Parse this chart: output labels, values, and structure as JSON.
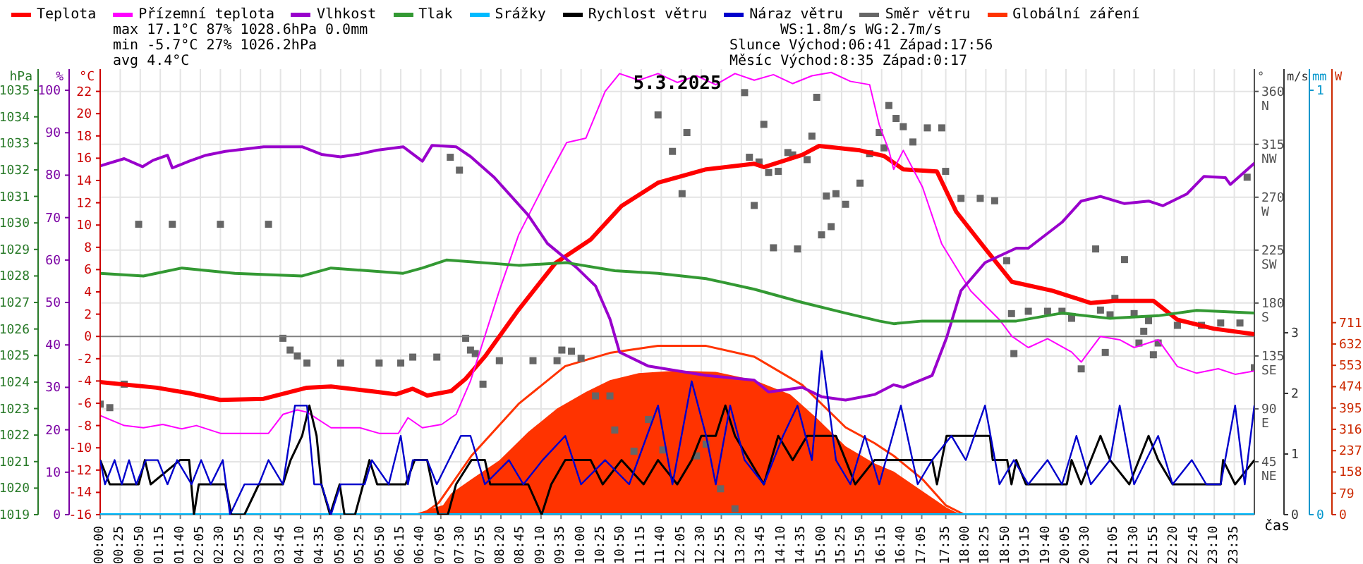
{
  "chart_data": [
    {
      "type": "line",
      "title": "5.3.2025",
      "ylabel": "°C",
      "y2label": "%",
      "y3label": "hPa",
      "annotations": [
        "max 17.1°C 87% 1028.6hPa 0.0mm",
        "min -5.7°C 27% 1026.2hPa",
        "avg 4.4°C",
        "WS:1.8m/s WG:2.7m/s",
        "Slunce Východ:06:41 Západ:17:56",
        "Měsíc Východ:8:35 Západ:0:17"
      ],
      "xlim": [
        0,
        24
      ],
      "tick_labels": "y",
      "ylim": [
        -16,
        24
      ],
      "yticks": [
        -16,
        -14,
        -12,
        -10,
        -8,
        -6,
        -4,
        -2,
        0,
        2,
        4,
        6,
        8,
        10,
        12,
        14,
        16,
        18,
        20,
        22
      ],
      "y2lim": [
        0,
        105
      ],
      "y2ticks": [
        0,
        10,
        20,
        30,
        40,
        50,
        60,
        70,
        80,
        90,
        100
      ],
      "y3lim": [
        1019,
        1035.8
      ],
      "y3ticks": [
        1019,
        1020,
        1021,
        1022,
        1023,
        1024,
        1025,
        1026,
        1027,
        1028,
        1029,
        1030,
        1031,
        1032,
        1033,
        1034,
        1035
      ],
      "legend": "top",
      "ref_lines": [
        {
          "axis": "y",
          "value": 0,
          "color": "#808080"
        }
      ],
      "series": [
        {
          "name": "Teplota",
          "color": "#ff0000",
          "x": [
            0,
            1.17,
            1.85,
            2.5,
            3.4,
            4.3,
            4.8,
            5.8,
            6.15,
            6.5,
            6.8,
            7.3,
            7.6,
            8.0,
            8.7,
            9.47,
            10.2,
            10.84,
            11.6,
            12.6,
            13.6,
            13.8,
            14.6,
            14.95,
            15.8,
            16.3,
            16.7,
            17.4,
            17.8,
            18.4,
            18.96,
            19.8,
            20.6,
            21.1,
            21.9,
            22.4,
            23.15,
            24
          ],
          "values": [
            -4.1,
            -4.6,
            -5.1,
            -5.7,
            -5.6,
            -4.6,
            -4.5,
            -5.0,
            -5.2,
            -4.7,
            -5.3,
            -4.9,
            -3.8,
            -1.8,
            2.4,
            6.6,
            8.7,
            11.7,
            13.8,
            15.0,
            15.5,
            15.2,
            16.3,
            17.1,
            16.7,
            16.2,
            15.0,
            14.8,
            11.2,
            7.9,
            4.9,
            4.1,
            3.0,
            3.2,
            3.2,
            1.5,
            0.7,
            0.2
          ]
        },
        {
          "name": "Přízemní teplota",
          "color": "#ff00ff",
          "x": [
            0,
            0.5,
            0.9,
            1.3,
            1.7,
            2.0,
            2.5,
            3.0,
            3.5,
            3.8,
            4.1,
            4.3,
            4.8,
            5.4,
            5.8,
            6.2,
            6.4,
            6.7,
            7.1,
            7.4,
            7.7,
            8.3,
            8.7,
            9.3,
            9.7,
            10.1,
            10.5,
            10.8,
            11.2,
            11.6,
            12.0,
            12.4,
            12.8,
            13.2,
            13.6,
            14.0,
            14.4,
            14.8,
            15.2,
            15.6,
            16.0,
            16.2,
            16.4,
            16.5,
            16.7,
            17.1,
            17.5,
            18.1,
            18.7,
            18.96,
            19.3,
            19.7,
            20.2,
            20.4,
            20.8,
            21.2,
            21.5,
            22.0,
            22.4,
            22.8,
            23.25,
            23.6,
            24
          ],
          "values": [
            -7.1,
            -8.0,
            -8.2,
            -7.9,
            -8.3,
            -8.0,
            -8.7,
            -8.7,
            -8.7,
            -7.0,
            -6.6,
            -6.8,
            -8.2,
            -8.2,
            -8.7,
            -8.7,
            -7.3,
            -8.2,
            -7.9,
            -7.0,
            -4.0,
            4.1,
            9.1,
            14.2,
            17.4,
            17.8,
            22.0,
            23.6,
            23.0,
            23.6,
            22.8,
            23.4,
            22.6,
            23.6,
            23.0,
            23.5,
            22.7,
            23.4,
            23.7,
            22.9,
            22.6,
            19.0,
            16.7,
            15.0,
            16.7,
            13.4,
            8.3,
            4.1,
            1.5,
            0.0,
            -1.0,
            -0.2,
            -1.4,
            -2.3,
            0.0,
            -0.3,
            -1.0,
            -0.3,
            -2.7,
            -3.3,
            -2.9,
            -3.4,
            -3.1
          ]
        },
        {
          "name": "Vlhkost",
          "color": "#9900cc",
          "axis": "y2",
          "x": [
            0,
            0.5,
            0.88,
            1.1,
            1.4,
            1.5,
            1.85,
            2.2,
            2.6,
            3.4,
            4.2,
            4.6,
            5.0,
            5.4,
            5.76,
            6.3,
            6.7,
            6.9,
            7.4,
            7.7,
            8.2,
            8.9,
            9.3,
            9.9,
            10.3,
            10.6,
            10.8,
            11.4,
            12.0,
            12.6,
            13.6,
            13.9,
            14.6,
            15.0,
            15.5,
            16.1,
            16.5,
            16.7,
            17.3,
            17.6,
            17.9,
            18.4,
            19.05,
            19.3,
            20.0,
            20.4,
            20.8,
            21.3,
            21.8,
            22.1,
            22.6,
            22.95,
            23.4,
            23.5,
            24
          ],
          "values": [
            82.2,
            83.9,
            82.0,
            83.5,
            84.7,
            81.7,
            83.3,
            84.7,
            85.6,
            86.7,
            86.7,
            84.9,
            84.3,
            85.0,
            85.9,
            86.7,
            83.3,
            87.0,
            86.7,
            84.4,
            79.4,
            70.6,
            63.9,
            58.3,
            53.9,
            46.1,
            38.3,
            35.0,
            33.9,
            32.8,
            31.7,
            28.9,
            30.0,
            27.8,
            27.0,
            28.3,
            30.6,
            30.0,
            32.8,
            41.7,
            52.8,
            59.4,
            62.8,
            62.8,
            68.9,
            73.9,
            75.0,
            73.3,
            73.9,
            72.8,
            75.6,
            79.7,
            79.4,
            77.8,
            82.8
          ]
        },
        {
          "name": "Tlak",
          "color": "#339933",
          "axis": "y3",
          "x": [
            0,
            0.9,
            1.7,
            2.8,
            4.2,
            4.8,
            6.3,
            6.7,
            7.2,
            8.7,
            9.7,
            10.7,
            11.6,
            12.6,
            13.6,
            14.6,
            15.5,
            16.2,
            16.5,
            17.1,
            18.1,
            19.05,
            20.0,
            21.0,
            22.0,
            22.8,
            24
          ],
          "values": [
            1028.1,
            1028.0,
            1028.3,
            1028.1,
            1028.0,
            1028.3,
            1028.1,
            1028.3,
            1028.6,
            1028.4,
            1028.5,
            1028.2,
            1028.1,
            1027.9,
            1027.5,
            1027.0,
            1026.6,
            1026.3,
            1026.2,
            1026.3,
            1026.3,
            1026.3,
            1026.6,
            1026.4,
            1026.5,
            1026.7,
            1026.6
          ]
        }
      ]
    },
    {
      "type": "line",
      "ylabel": "m/s",
      "y2label": "mm",
      "xlim": [
        0,
        24
      ],
      "tick_labels": "y",
      "ylim": [
        0,
        7.35
      ],
      "yticks": [
        0,
        1,
        2,
        3
      ],
      "y2lim": [
        0,
        1.05
      ],
      "y2ticks": [
        0,
        1
      ],
      "legend": "top",
      "series": [
        {
          "name": "Srážky",
          "color": "#00bbff",
          "axis": "y2",
          "x": [
            0,
            24
          ],
          "values": [
            0,
            0
          ]
        },
        {
          "name": "Rychlost větru",
          "color": "#000000",
          "x": [
            0,
            0.2,
            0.8,
            0.93,
            1.05,
            1.66,
            1.85,
            1.95,
            2.05,
            2.6,
            2.73,
            3.0,
            3.3,
            3.8,
            3.96,
            4.2,
            4.35,
            4.5,
            4.6,
            4.78,
            4.98,
            5.08,
            5.3,
            5.47,
            5.6,
            5.76,
            6.35,
            6.54,
            6.8,
            7.03,
            7.23,
            7.4,
            7.72,
            8.0,
            8.11,
            8.9,
            9.18,
            9.38,
            9.67,
            10.2,
            10.45,
            10.84,
            11.3,
            11.6,
            12.0,
            12.3,
            12.5,
            12.8,
            13.0,
            13.2,
            13.5,
            13.8,
            14.1,
            14.4,
            14.7,
            15.3,
            15.5,
            15.7,
            16.1,
            16.7,
            17.3,
            17.4,
            17.6,
            18.5,
            18.56,
            18.86,
            18.95,
            19.05,
            19.25,
            20.1,
            20.2,
            20.4,
            20.8,
            21.0,
            21.4,
            21.8,
            22.0,
            22.3,
            23.3,
            23.35,
            23.6,
            24
          ],
          "values": [
            0.9,
            0.5,
            0.5,
            0.9,
            0.5,
            0.9,
            0.9,
            0,
            0.5,
            0.5,
            0,
            0,
            0.5,
            0.5,
            0.9,
            1.3,
            1.8,
            1.3,
            0.5,
            0,
            0.5,
            0,
            0,
            0.5,
            0.9,
            0.5,
            0.5,
            0.9,
            0.9,
            0,
            0,
            0.5,
            0.9,
            0.9,
            0.5,
            0.5,
            0,
            0.5,
            0.9,
            0.9,
            0.5,
            0.9,
            0.5,
            0.9,
            0.5,
            0.9,
            1.3,
            1.3,
            1.8,
            1.3,
            0.9,
            0.5,
            1.3,
            0.9,
            1.3,
            1.3,
            0.9,
            0.5,
            0.9,
            0.9,
            0.9,
            0.5,
            1.3,
            1.3,
            0.9,
            0.9,
            0.5,
            0.9,
            0.5,
            0.5,
            0.9,
            0.5,
            1.3,
            0.9,
            0.5,
            1.3,
            0.9,
            0.5,
            0.5,
            0.9,
            0.5,
            0.9
          ]
        },
        {
          "name": "Náraz větru",
          "color": "#0000cc",
          "x": [
            0,
            0.1,
            0.3,
            0.45,
            0.6,
            0.75,
            0.95,
            1.2,
            1.4,
            1.6,
            1.9,
            2.1,
            2.3,
            2.55,
            2.7,
            3.0,
            3.3,
            3.5,
            3.8,
            4.05,
            4.3,
            4.45,
            4.6,
            4.8,
            5.0,
            5.5,
            5.65,
            6.0,
            6.25,
            6.4,
            6.5,
            6.8,
            7.0,
            7.5,
            7.7,
            8.0,
            8.5,
            8.8,
            9.2,
            9.67,
            10.0,
            10.5,
            11.0,
            11.6,
            11.9,
            12.3,
            12.6,
            12.8,
            13.1,
            13.4,
            13.8,
            14.2,
            14.5,
            14.8,
            15.0,
            15.3,
            15.6,
            15.9,
            16.2,
            16.65,
            17.0,
            17.3,
            17.7,
            18.0,
            18.4,
            18.7,
            19.0,
            19.3,
            19.7,
            20.0,
            20.3,
            20.6,
            21.0,
            21.2,
            21.5,
            22.0,
            22.3,
            22.7,
            23.0,
            23.3,
            23.6,
            23.8,
            24
          ],
          "values": [
            0.9,
            0.5,
            0.9,
            0.5,
            0.9,
            0.5,
            0.9,
            0.9,
            0.5,
            0.9,
            0.5,
            0.9,
            0.5,
            0.9,
            0,
            0.5,
            0.5,
            0.9,
            0.5,
            1.8,
            1.8,
            0.5,
            0.5,
            0,
            0.5,
            0.5,
            0.9,
            0.5,
            1.3,
            0.5,
            0.9,
            0.9,
            0.5,
            1.3,
            1.3,
            0.5,
            0.9,
            0.5,
            0.9,
            1.3,
            0.5,
            0.9,
            0.5,
            1.8,
            0.5,
            2.2,
            1.3,
            0.5,
            1.8,
            0.9,
            0.5,
            1.3,
            1.8,
            0.9,
            2.7,
            0.9,
            0.5,
            1.3,
            0.5,
            1.8,
            0.5,
            0.9,
            1.3,
            0.9,
            1.8,
            0.5,
            0.9,
            0.5,
            0.9,
            0.5,
            1.3,
            0.5,
            0.9,
            1.8,
            0.5,
            1.3,
            0.5,
            0.9,
            0.5,
            0.5,
            1.8,
            0.5,
            1.8
          ]
        }
      ]
    },
    {
      "type": "scatter",
      "xlabel": "čas",
      "xlim": [
        0,
        24
      ],
      "xticks": [
        {
          "value": 0,
          "label": "00:00"
        },
        {
          "value": 0.4167,
          "label": "00:25"
        },
        {
          "value": 0.8333,
          "label": "00:50"
        },
        {
          "value": 1.25,
          "label": "01:15"
        },
        {
          "value": 1.6667,
          "label": "01:40"
        },
        {
          "value": 2.0833,
          "label": "02:05"
        },
        {
          "value": 2.5,
          "label": "02:30"
        },
        {
          "value": 2.9167,
          "label": "02:55"
        },
        {
          "value": 3.3333,
          "label": "03:20"
        },
        {
          "value": 3.75,
          "label": "03:45"
        },
        {
          "value": 4.1667,
          "label": "04:10"
        },
        {
          "value": 4.5833,
          "label": "04:35"
        },
        {
          "value": 5,
          "label": "05:00"
        },
        {
          "value": 5.4167,
          "label": "05:25"
        },
        {
          "value": 5.8333,
          "label": "05:50"
        },
        {
          "value": 6.25,
          "label": "06:15"
        },
        {
          "value": 6.6667,
          "label": "06:40"
        },
        {
          "value": 7.0833,
          "label": "07:05"
        },
        {
          "value": 7.5,
          "label": "07:30"
        },
        {
          "value": 7.9167,
          "label": "07:55"
        },
        {
          "value": 8.3333,
          "label": "08:20"
        },
        {
          "value": 8.75,
          "label": "08:45"
        },
        {
          "value": 9.1667,
          "label": "09:10"
        },
        {
          "value": 9.5833,
          "label": "09:35"
        },
        {
          "value": 10,
          "label": "10:00"
        },
        {
          "value": 10.4167,
          "label": "10:25"
        },
        {
          "value": 10.8333,
          "label": "10:50"
        },
        {
          "value": 11.25,
          "label": "11:15"
        },
        {
          "value": 11.6667,
          "label": "11:40"
        },
        {
          "value": 12.0833,
          "label": "12:05"
        },
        {
          "value": 12.5,
          "label": "12:30"
        },
        {
          "value": 12.9167,
          "label": "12:55"
        },
        {
          "value": 13.3333,
          "label": "13:20"
        },
        {
          "value": 13.75,
          "label": "13:45"
        },
        {
          "value": 14.1667,
          "label": "14:10"
        },
        {
          "value": 14.5833,
          "label": "14:35"
        },
        {
          "value": 15,
          "label": "15:00"
        },
        {
          "value": 15.4167,
          "label": "15:25"
        },
        {
          "value": 15.8333,
          "label": "15:50"
        },
        {
          "value": 16.25,
          "label": "16:15"
        },
        {
          "value": 16.6667,
          "label": "16:40"
        },
        {
          "value": 17.0833,
          "label": "17:05"
        },
        {
          "value": 17.5833,
          "label": "17:35"
        },
        {
          "value": 18,
          "label": "18:00"
        },
        {
          "value": 18.4167,
          "label": "18:25"
        },
        {
          "value": 18.8333,
          "label": "18:50"
        },
        {
          "value": 19.25,
          "label": "19:15"
        },
        {
          "value": 19.6667,
          "label": "19:40"
        },
        {
          "value": 20.0833,
          "label": "20:05"
        },
        {
          "value": 20.5,
          "label": "20:30"
        },
        {
          "value": 21.0833,
          "label": "21:05"
        },
        {
          "value": 21.5,
          "label": "21:30"
        },
        {
          "value": 21.9167,
          "label": "21:55"
        },
        {
          "value": 22.3333,
          "label": "22:20"
        },
        {
          "value": 22.75,
          "label": "22:45"
        },
        {
          "value": 23.1667,
          "label": "23:10"
        },
        {
          "value": 23.5833,
          "label": "23:35"
        }
      ],
      "ylabel": "°",
      "ylim": [
        0,
        379
      ],
      "yticks": [
        {
          "value": 45,
          "label": "45 NE"
        },
        {
          "value": 90,
          "label": "90 E"
        },
        {
          "value": 135,
          "label": "135 SE"
        },
        {
          "value": 180,
          "label": "180 S"
        },
        {
          "value": 225,
          "label": "225 SW"
        },
        {
          "value": 270,
          "label": "270 W"
        },
        {
          "value": 315,
          "label": "315 NW"
        },
        {
          "value": 360,
          "label": "360 N"
        }
      ],
      "y2label": "W",
      "y2lim": [
        0,
        1650
      ],
      "y2ticks": [
        0,
        79,
        158,
        237,
        316,
        395,
        474,
        553,
        632,
        711
      ],
      "grid": true,
      "legend": "top",
      "series": [
        {
          "name": "Směr větru",
          "color": "#666666",
          "marker": "square",
          "x": [
            0,
            0.2,
            0.5,
            0.8,
            1.5,
            2.5,
            3.5,
            3.8,
            3.95,
            4.1,
            4.3,
            5.0,
            5.8,
            6.25,
            6.5,
            7.0,
            7.28,
            7.47,
            7.6,
            7.7,
            7.8,
            7.96,
            8.3,
            9.0,
            9.5,
            9.6,
            9.8,
            10.0,
            10.3,
            10.6,
            10.7,
            11.1,
            11.4,
            11.6,
            11.7,
            11.9,
            12.1,
            12.2,
            12.4,
            12.6,
            12.9,
            13.2,
            13.4,
            13.5,
            13.6,
            13.7,
            13.8,
            13.9,
            14.0,
            14.1,
            14.3,
            14.4,
            14.5,
            14.7,
            14.8,
            14.9,
            15.0,
            15.1,
            15.2,
            15.3,
            15.5,
            15.8,
            16.0,
            16.2,
            16.3,
            16.4,
            16.55,
            16.7,
            16.9,
            17.2,
            17.5,
            17.58,
            17.9,
            18.3,
            18.6,
            18.85,
            18.95,
            19.0,
            19.3,
            19.7,
            20.0,
            20.2,
            20.4,
            20.7,
            20.8,
            20.9,
            21.0,
            21.1,
            21.3,
            21.5,
            21.6,
            21.7,
            21.8,
            21.9,
            22.0,
            22.4,
            22.9,
            23.3,
            23.7,
            23.85,
            24
          ],
          "values": [
            94,
            91,
            111,
            247,
            247,
            247,
            247,
            150,
            140,
            135,
            129,
            129,
            129,
            129,
            134,
            134,
            304,
            293,
            150,
            140,
            137,
            111,
            131,
            131,
            131,
            140,
            139,
            133,
            101,
            101,
            72,
            54,
            81,
            340,
            55,
            309,
            273,
            325,
            50,
            60,
            22,
            5,
            359,
            304,
            263,
            300,
            332,
            291,
            227,
            292,
            308,
            306,
            226,
            302,
            322,
            355,
            238,
            271,
            245,
            273,
            264,
            282,
            307,
            325,
            312,
            348,
            337,
            330,
            317,
            329,
            329,
            292,
            269,
            269,
            267,
            216,
            171,
            137,
            173,
            173,
            173,
            167,
            124,
            226,
            174,
            138,
            170,
            184,
            217,
            171,
            146,
            156,
            165,
            136,
            146,
            161,
            161,
            163,
            163,
            287,
            125
          ]
        },
        {
          "name": "Globální záření",
          "color": "#ff3300",
          "axis": "y2",
          "type": "area",
          "x": [
            6.5,
            7.13,
            7.3,
            7.72,
            8.3,
            8.9,
            9.5,
            10.1,
            10.6,
            11.2,
            12.0,
            12.8,
            13.6,
            14.35,
            14.9,
            15.5,
            16.1,
            16.5,
            17.1,
            17.6,
            17.9
          ],
          "values": [
            0,
            35,
            79,
            131,
            201,
            306,
            393,
            454,
            498,
            524,
            533,
            529,
            498,
            445,
            358,
            253,
            190,
            160,
            87,
            26,
            0
          ]
        },
        {
          "color": "#ff3300",
          "axis": "y2",
          "type": "line",
          "x": [
            6.7,
            7.04,
            7.72,
            8.7,
            9.67,
            10.6,
            11.6,
            12.6,
            13.6,
            14.6,
            15.5,
            16.1,
            16.5,
            17.1,
            17.58,
            17.97
          ],
          "values": [
            0,
            44,
            218,
            410,
            550,
            599,
            625,
            625,
            585,
            480,
            323,
            265,
            218,
            131,
            35,
            0
          ]
        }
      ]
    }
  ]
}
